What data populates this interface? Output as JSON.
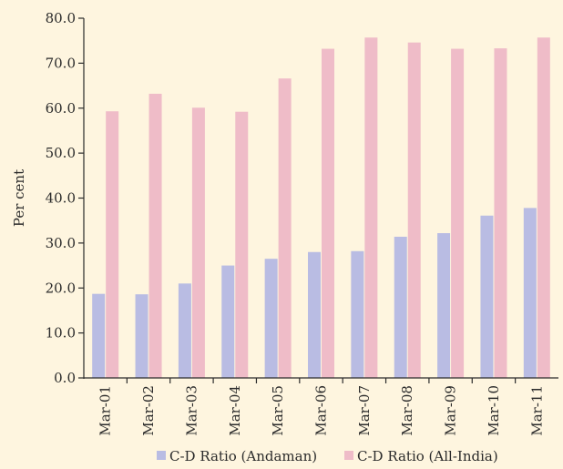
{
  "chart_data": {
    "type": "bar",
    "title": "",
    "xlabel": "",
    "ylabel": "Per cent",
    "ylim": [
      0,
      80
    ],
    "yticks": [
      "0.0",
      "10.0",
      "20.0",
      "30.0",
      "40.0",
      "50.0",
      "60.0",
      "70.0",
      "80.0"
    ],
    "categories": [
      "Mar-01",
      "Mar-02",
      "Mar-03",
      "Mar-04",
      "Mar-05",
      "Mar-06",
      "Mar-07",
      "Mar-08",
      "Mar-09",
      "Mar-10",
      "Mar-11"
    ],
    "series": [
      {
        "name": "C-D Ratio (Andaman)",
        "color": "#b9bce3",
        "values": [
          18.7,
          18.6,
          21.0,
          25.0,
          26.5,
          28.0,
          28.2,
          31.4,
          32.2,
          36.1,
          37.8
        ]
      },
      {
        "name": "C-D Ratio (All-India)",
        "color": "#efbcc8",
        "values": [
          59.3,
          63.2,
          60.1,
          59.2,
          66.6,
          73.2,
          75.7,
          74.6,
          73.2,
          73.3,
          75.7
        ]
      }
    ],
    "grid": false,
    "legend_position": "bottom"
  }
}
